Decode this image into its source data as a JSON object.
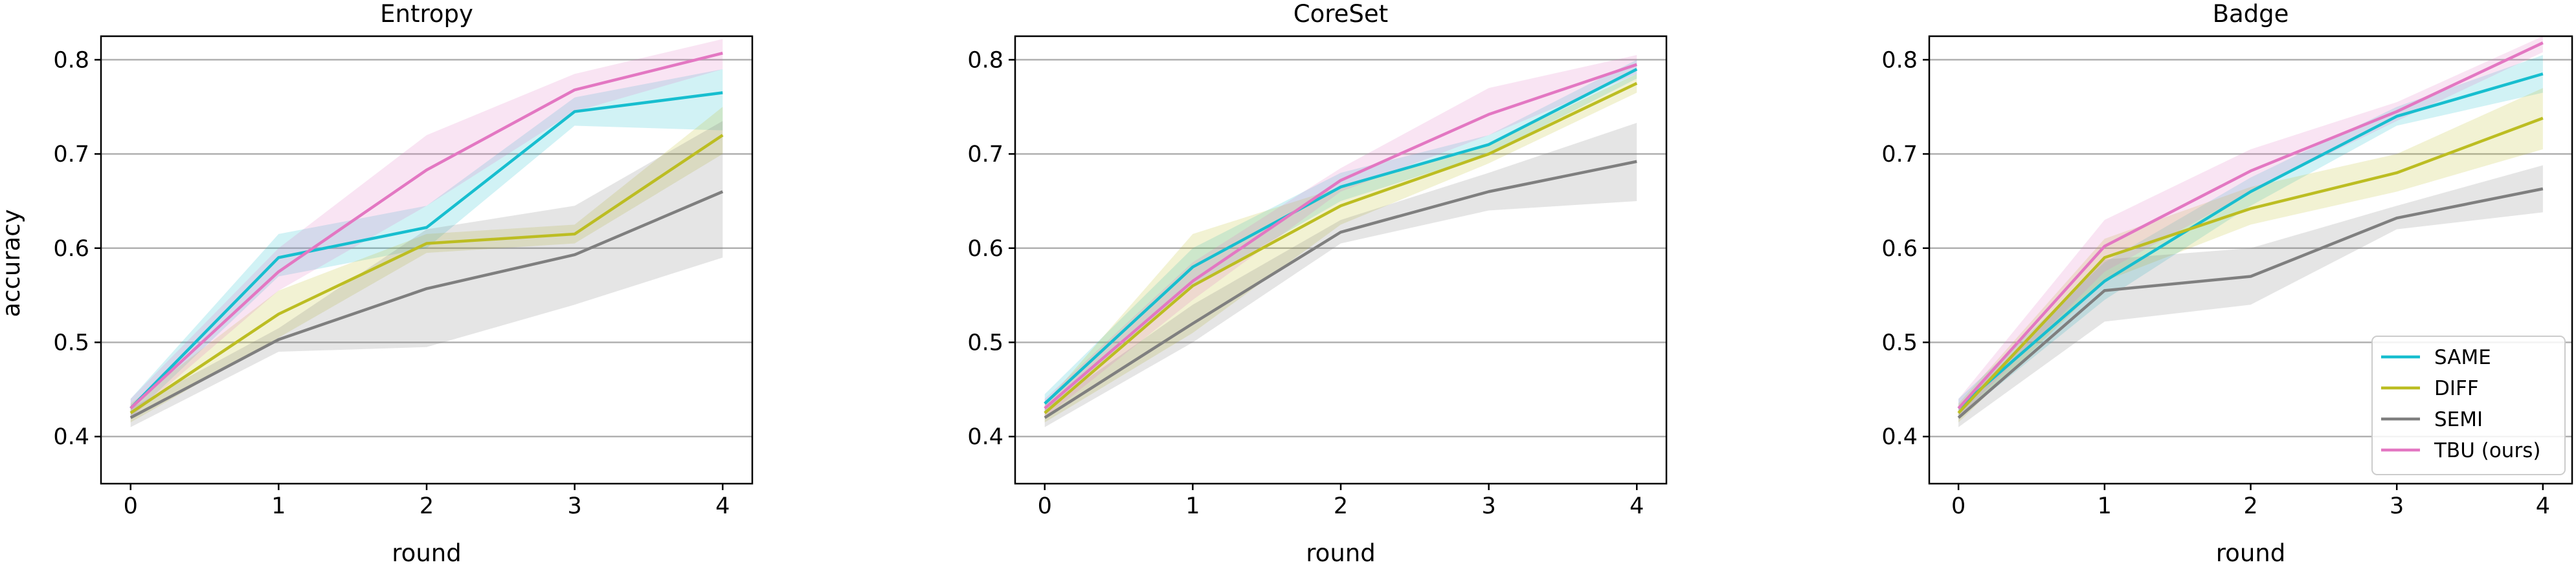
{
  "figure": {
    "ylabel": "accuracy",
    "xlabel": "round"
  },
  "chart_data": [
    {
      "type": "line",
      "title": "Entropy",
      "xlabel": "round",
      "ylabel": "accuracy",
      "x": [
        0,
        1,
        2,
        3,
        4
      ],
      "xticks": [
        "0",
        "1",
        "2",
        "3",
        "4"
      ],
      "yticks": [
        "0.4",
        "0.5",
        "0.6",
        "0.7",
        "0.8"
      ],
      "xlim": [
        -0.2,
        4.2
      ],
      "ylim": [
        0.35,
        0.825
      ],
      "grid": "horizontal",
      "series": [
        {
          "name": "SAME",
          "values": [
            0.43,
            0.59,
            0.622,
            0.745,
            0.765
          ],
          "lower": [
            0.42,
            0.57,
            0.6,
            0.73,
            0.725
          ],
          "upper": [
            0.44,
            0.615,
            0.645,
            0.76,
            0.79
          ]
        },
        {
          "name": "DIFF",
          "values": [
            0.425,
            0.53,
            0.605,
            0.615,
            0.72
          ],
          "lower": [
            0.415,
            0.505,
            0.595,
            0.605,
            0.7
          ],
          "upper": [
            0.435,
            0.555,
            0.615,
            0.625,
            0.75
          ]
        },
        {
          "name": "SEMI",
          "values": [
            0.42,
            0.503,
            0.557,
            0.593,
            0.66
          ],
          "lower": [
            0.41,
            0.49,
            0.495,
            0.54,
            0.59
          ],
          "upper": [
            0.43,
            0.515,
            0.62,
            0.645,
            0.735
          ]
        },
        {
          "name": "TBU (ours)",
          "values": [
            0.43,
            0.575,
            0.683,
            0.768,
            0.807
          ],
          "lower": [
            0.42,
            0.555,
            0.645,
            0.745,
            0.79
          ],
          "upper": [
            0.44,
            0.6,
            0.72,
            0.785,
            0.822
          ]
        }
      ]
    },
    {
      "type": "line",
      "title": "CoreSet",
      "xlabel": "round",
      "x": [
        0,
        1,
        2,
        3,
        4
      ],
      "xticks": [
        "0",
        "1",
        "2",
        "3",
        "4"
      ],
      "yticks": [
        "0.4",
        "0.5",
        "0.6",
        "0.7",
        "0.8"
      ],
      "xlim": [
        -0.2,
        4.2
      ],
      "ylim": [
        0.35,
        0.825
      ],
      "grid": "horizontal",
      "series": [
        {
          "name": "SAME",
          "values": [
            0.435,
            0.58,
            0.665,
            0.71,
            0.79
          ],
          "lower": [
            0.425,
            0.56,
            0.65,
            0.7,
            0.78
          ],
          "upper": [
            0.445,
            0.6,
            0.68,
            0.72,
            0.8
          ]
        },
        {
          "name": "DIFF",
          "values": [
            0.425,
            0.56,
            0.645,
            0.7,
            0.775
          ],
          "lower": [
            0.415,
            0.51,
            0.625,
            0.69,
            0.765
          ],
          "upper": [
            0.435,
            0.615,
            0.665,
            0.71,
            0.785
          ]
        },
        {
          "name": "SEMI",
          "values": [
            0.42,
            0.52,
            0.617,
            0.66,
            0.692
          ],
          "lower": [
            0.41,
            0.5,
            0.605,
            0.64,
            0.65
          ],
          "upper": [
            0.43,
            0.54,
            0.63,
            0.68,
            0.733
          ]
        },
        {
          "name": "TBU (ours)",
          "values": [
            0.43,
            0.565,
            0.672,
            0.742,
            0.795
          ],
          "lower": [
            0.42,
            0.545,
            0.66,
            0.72,
            0.785
          ],
          "upper": [
            0.44,
            0.585,
            0.685,
            0.77,
            0.805
          ]
        }
      ]
    },
    {
      "type": "line",
      "title": "Badge",
      "xlabel": "round",
      "x": [
        0,
        1,
        2,
        3,
        4
      ],
      "xticks": [
        "0",
        "1",
        "2",
        "3",
        "4"
      ],
      "yticks": [
        "0.4",
        "0.5",
        "0.6",
        "0.7",
        "0.8"
      ],
      "xlim": [
        -0.2,
        4.2
      ],
      "ylim": [
        0.35,
        0.825
      ],
      "grid": "horizontal",
      "legend": "lower-right",
      "series": [
        {
          "name": "SAME",
          "values": [
            0.43,
            0.565,
            0.66,
            0.74,
            0.785
          ],
          "lower": [
            0.42,
            0.545,
            0.645,
            0.73,
            0.765
          ],
          "upper": [
            0.44,
            0.585,
            0.675,
            0.75,
            0.805
          ]
        },
        {
          "name": "DIFF",
          "values": [
            0.425,
            0.59,
            0.642,
            0.68,
            0.738
          ],
          "lower": [
            0.415,
            0.565,
            0.625,
            0.66,
            0.705
          ],
          "upper": [
            0.435,
            0.61,
            0.665,
            0.7,
            0.77
          ]
        },
        {
          "name": "SEMI",
          "values": [
            0.42,
            0.555,
            0.57,
            0.632,
            0.663
          ],
          "lower": [
            0.41,
            0.522,
            0.54,
            0.62,
            0.638
          ],
          "upper": [
            0.43,
            0.588,
            0.6,
            0.645,
            0.688
          ]
        },
        {
          "name": "TBU (ours)",
          "values": [
            0.43,
            0.602,
            0.682,
            0.745,
            0.818
          ],
          "lower": [
            0.42,
            0.575,
            0.66,
            0.735,
            0.808
          ],
          "upper": [
            0.44,
            0.63,
            0.705,
            0.755,
            0.825
          ]
        }
      ]
    }
  ],
  "colors": {
    "SAME": "#17becf",
    "DIFF": "#bcbd22",
    "SEMI": "#7f7f7f",
    "TBU (ours)": "#e377c2",
    "grid": "#b0b0b0",
    "axes": "#000000"
  }
}
